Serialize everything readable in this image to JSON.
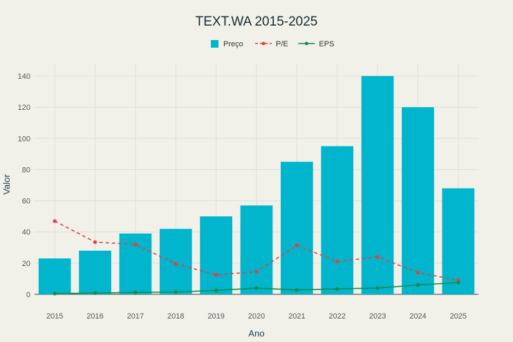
{
  "chart_data": {
    "type": "bar",
    "title": "TEXT.WA 2015-2025",
    "xlabel": "Ano",
    "ylabel": "Valor",
    "categories": [
      "2015",
      "2016",
      "2017",
      "2018",
      "2019",
      "2020",
      "2021",
      "2022",
      "2023",
      "2024",
      "2025"
    ],
    "ylim": [
      0,
      148
    ],
    "yticks": [
      0,
      20,
      40,
      60,
      80,
      100,
      120,
      140
    ],
    "grid": true,
    "legend_position": "top-center",
    "series": [
      {
        "name": "Preço",
        "kind": "bar",
        "color": "#00b5cc",
        "values": [
          23,
          28,
          39,
          42,
          50,
          57,
          85,
          95,
          140,
          120,
          68
        ]
      },
      {
        "name": "P/E",
        "kind": "line",
        "style": "dashed",
        "color": "#e8403f",
        "values": [
          47,
          33.5,
          32,
          19.5,
          12.5,
          14.5,
          31.5,
          21,
          24,
          14,
          9
        ]
      },
      {
        "name": "EPS",
        "kind": "line",
        "style": "solid",
        "color": "#158a4a",
        "values": [
          0.5,
          0.8,
          1.2,
          1.5,
          2.5,
          4,
          2.8,
          3.5,
          4,
          6,
          7.5
        ]
      }
    ]
  }
}
